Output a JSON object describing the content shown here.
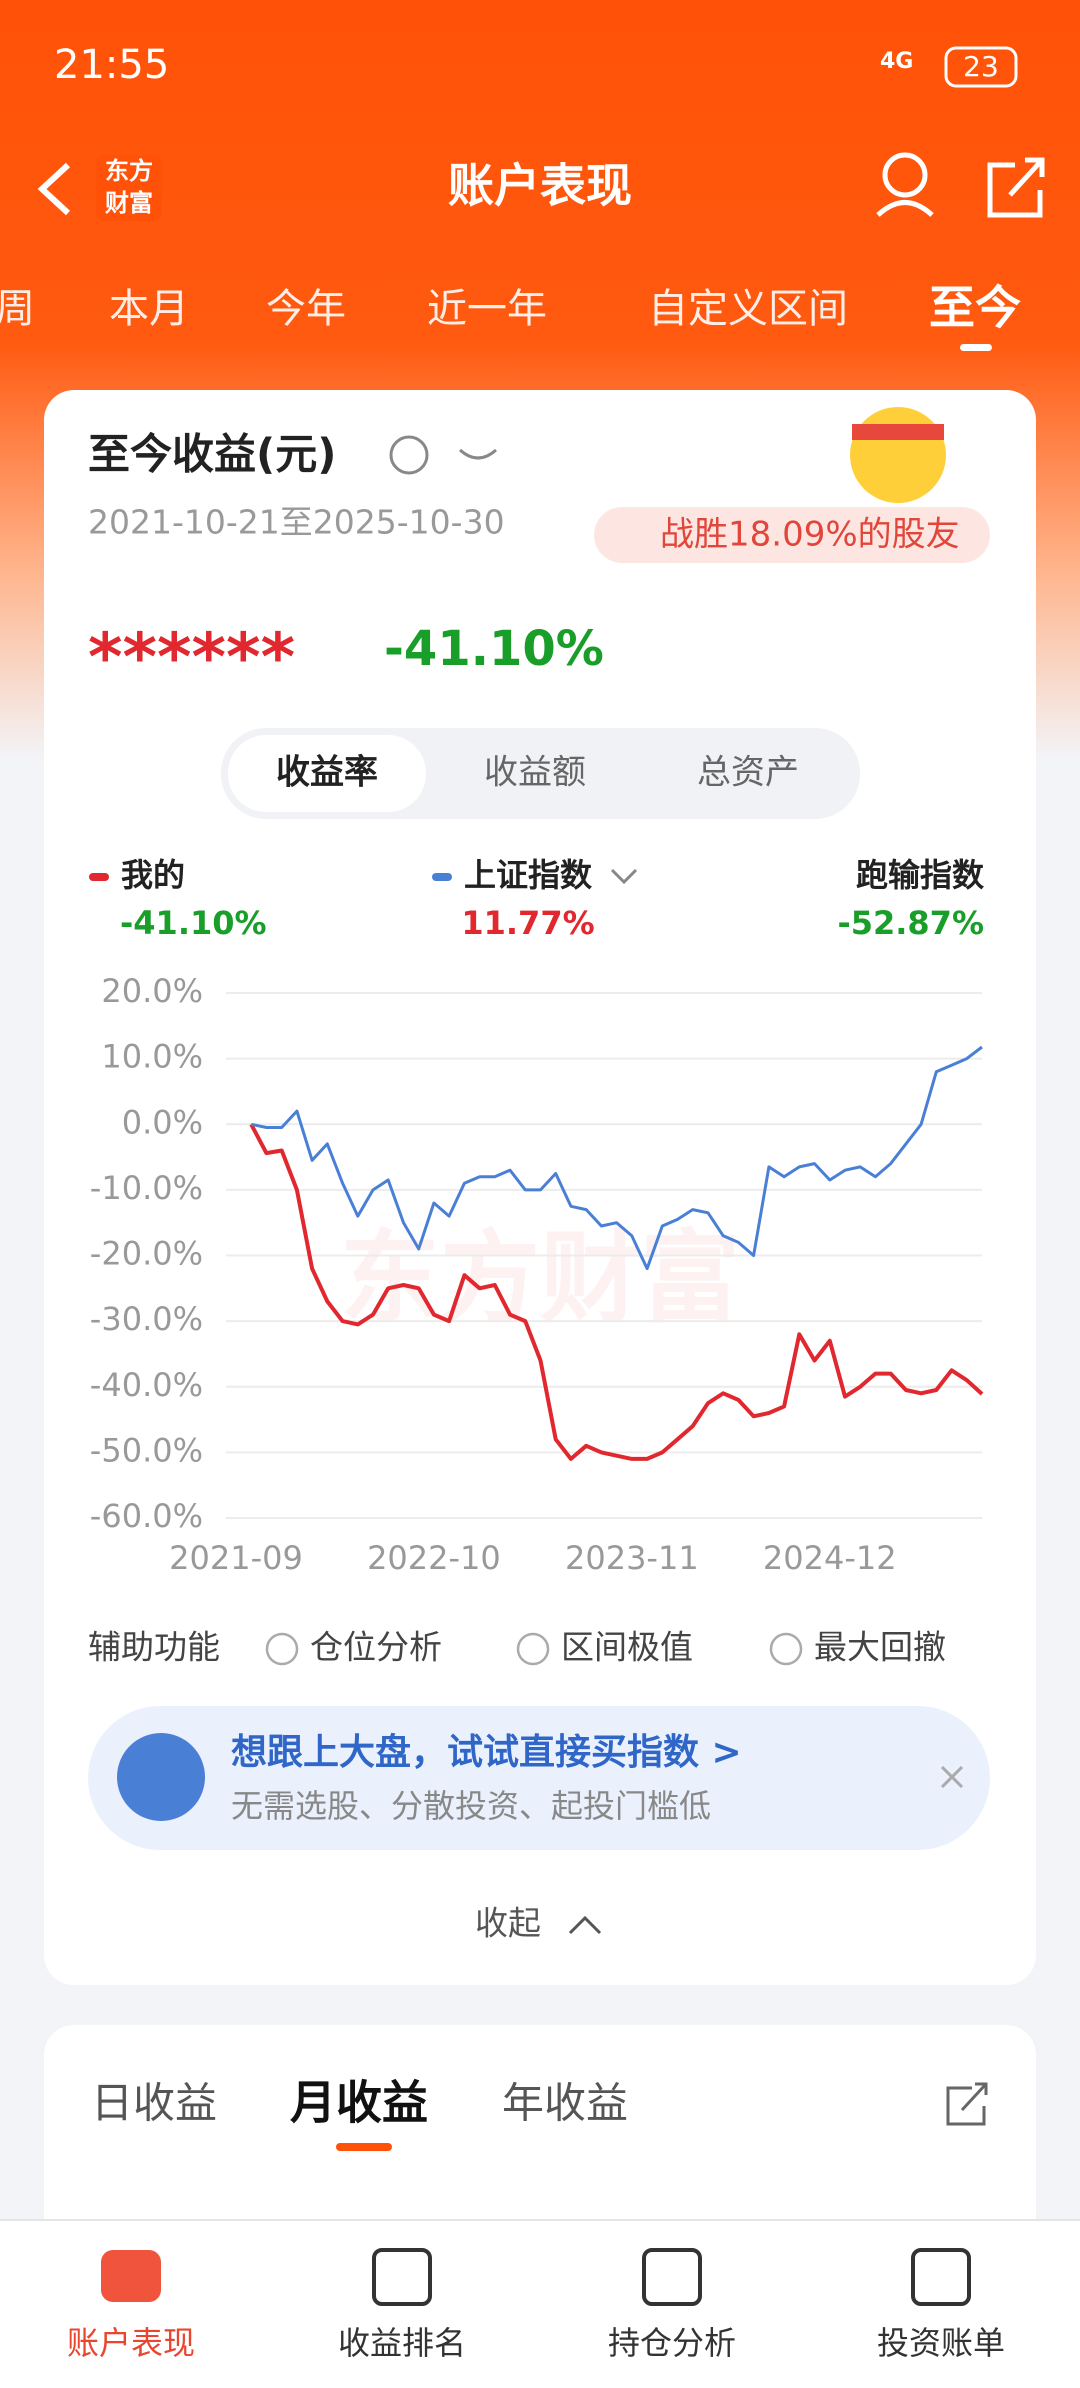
{
  "status_bar": {
    "time": "21:55",
    "network": "4G",
    "battery": "23"
  },
  "header": {
    "title": "账户表现",
    "logo": [
      "东方",
      "财富"
    ]
  },
  "period_tabs": [
    "周",
    "本月",
    "今年",
    "近一年",
    "自定义区间",
    "至今"
  ],
  "summary": {
    "title": "至今收益(元)",
    "date_range": "2021-10-21至2025-10-30",
    "badge": "战胜18.09%的股友",
    "hidden_amount": "******",
    "return": "-41.10%"
  },
  "metric_tabs": [
    "收益率",
    "收益额",
    "总资产"
  ],
  "legend_values": [
    "-41.10%",
    "11.77%",
    "-52.87%"
  ],
  "legend_extra_name": "跑输指数",
  "watermark": "东方财富",
  "chart_data": {
    "type": "line",
    "x": [
      "2021-10",
      "2021-11",
      "2021-12",
      "2022-01",
      "2022-02",
      "2022-03",
      "2022-04",
      "2022-05",
      "2022-06",
      "2022-07",
      "2022-08",
      "2022-09",
      "2022-10",
      "2022-11",
      "2022-12",
      "2023-01",
      "2023-02",
      "2023-03",
      "2023-04",
      "2023-05",
      "2023-06",
      "2023-07",
      "2023-08",
      "2023-09",
      "2023-10",
      "2023-11",
      "2023-12",
      "2024-01",
      "2024-02",
      "2024-03",
      "2024-04",
      "2024-05",
      "2024-06",
      "2024-07",
      "2024-08",
      "2024-09",
      "2024-10",
      "2024-11",
      "2024-12",
      "2025-01",
      "2025-02",
      "2025-03",
      "2025-04",
      "2025-05",
      "2025-06",
      "2025-07",
      "2025-08",
      "2025-09",
      "2025-10"
    ],
    "series": [
      {
        "name": "我的",
        "color": "#e0282e",
        "values": [
          0,
          -4.4,
          -4,
          -10,
          -22,
          -27,
          -30,
          -30.5,
          -29,
          -25,
          -24.5,
          -25,
          -29,
          -30,
          -23,
          -25,
          -24.5,
          -29,
          -30,
          -36,
          -48,
          -51,
          -49,
          -50,
          -50.5,
          -51,
          -51,
          -50,
          -48,
          -46,
          -42.5,
          -41,
          -42,
          -44.5,
          -44,
          -43,
          -32,
          -36,
          -33,
          -41.5,
          -40,
          -38,
          -38,
          -40.5,
          -41,
          -40.5,
          -37.5,
          -39,
          -41.1
        ]
      },
      {
        "name": "上证指数",
        "color": "#4a7fd6",
        "values": [
          0,
          -0.5,
          -0.5,
          2,
          -5.5,
          -3,
          -9,
          -14,
          -10,
          -8.5,
          -15,
          -19,
          -12,
          -14,
          -9,
          -8,
          -8,
          -7,
          -10,
          -10,
          -7.5,
          -12.5,
          -13,
          -15.5,
          -15,
          -17,
          -22,
          -15.5,
          -14.5,
          -13,
          -13.5,
          -17,
          -18,
          -20,
          -6.5,
          -8,
          -6.5,
          -6,
          -8.5,
          -7,
          -6.5,
          -8,
          -6,
          -3,
          0,
          8,
          9,
          10,
          11.77
        ]
      }
    ],
    "xlim": [
      "2021-09",
      "2025-10"
    ],
    "xticks": [
      "2021-09",
      "2022-10",
      "2023-11",
      "2024-12"
    ],
    "ylim": [
      -60,
      20
    ],
    "yticks": [
      {
        "value": 20,
        "label": "20.0%"
      },
      {
        "value": 10,
        "label": "10.0%"
      },
      {
        "value": 0,
        "label": "0.0%"
      },
      {
        "value": -10,
        "label": "-10.0%"
      },
      {
        "value": -20,
        "label": "-20.0%"
      },
      {
        "value": -30,
        "label": "-30.0%"
      },
      {
        "value": -40,
        "label": "-40.0%"
      },
      {
        "value": -50,
        "label": "-50.0%"
      },
      {
        "value": -60,
        "label": "-60.0%"
      }
    ],
    "grid": true
  },
  "aux": {
    "label": "辅助功能",
    "options": [
      "仓位分析",
      "区间极值",
      "最大回撤"
    ]
  },
  "banner": {
    "title": "想跟上大盘，试试直接买指数 >",
    "subtitle": "无需选股、分散投资、起投门槛低"
  },
  "collapse": "收起",
  "earnings_tabs": [
    "日收益",
    "月收益",
    "年收益"
  ],
  "bottom_nav": [
    "账户表现",
    "收益排名",
    "持仓分析",
    "投资账单"
  ]
}
